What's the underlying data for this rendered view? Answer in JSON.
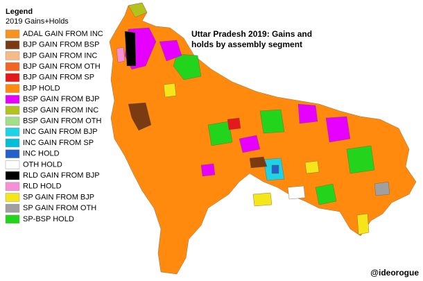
{
  "legend": {
    "title": "Legend",
    "subtitle": "2019 Gains+Holds",
    "items": [
      {
        "label": "ADAL GAIN FROM INC",
        "color": "#f7931e"
      },
      {
        "label": "BJP GAIN FROM BSP",
        "color": "#7a3a12"
      },
      {
        "label": "BJP GAIN FROM INC",
        "color": "#f6bb86"
      },
      {
        "label": "BJP GAIN FROM OTH",
        "color": "#f26522"
      },
      {
        "label": "BJP GAIN FROM SP",
        "color": "#e3191c"
      },
      {
        "label": "BJP HOLD",
        "color": "#ff8a0d"
      },
      {
        "label": "BSP GAIN FROM BJP",
        "color": "#e600ff"
      },
      {
        "label": "BSP GAIN FROM INC",
        "color": "#b4c21e"
      },
      {
        "label": "BSP GAIN FROM OTH",
        "color": "#a3df89"
      },
      {
        "label": "INC GAIN FROM BJP",
        "color": "#1fd3e6"
      },
      {
        "label": "INC GAIN FROM SP",
        "color": "#00bfd6"
      },
      {
        "label": "INC HOLD",
        "color": "#2361c8"
      },
      {
        "label": "OTH HOLD",
        "color": "#ffffff"
      },
      {
        "label": "RLD GAIN FROM BJP",
        "color": "#000000"
      },
      {
        "label": "RLD HOLD",
        "color": "#f78fd6"
      },
      {
        "label": "SP GAIN FROM BJP",
        "color": "#f5e61a"
      },
      {
        "label": "SP GAIN FROM OTH",
        "color": "#a0a0a0"
      },
      {
        "label": "SP-BSP HOLD",
        "color": "#22d41c"
      }
    ]
  },
  "map": {
    "title_lines": [
      "Uttar Pradesh 2019: Gains and",
      "holds by assembly segment"
    ]
  },
  "credit": "@ideorogue"
}
